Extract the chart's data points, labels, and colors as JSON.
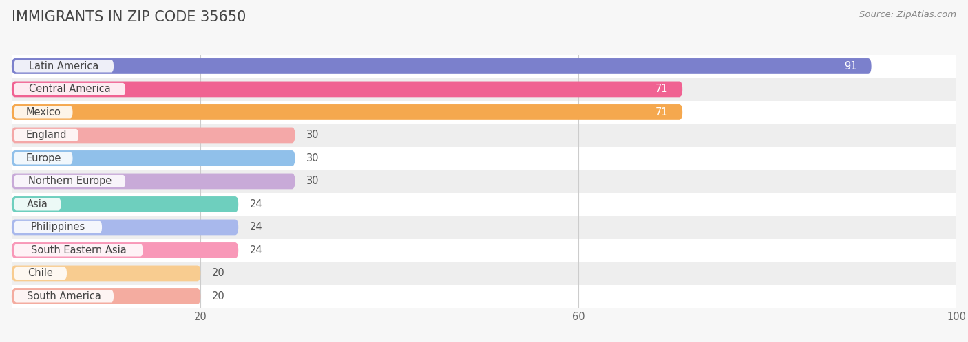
{
  "title": "IMMIGRANTS IN ZIP CODE 35650",
  "source": "Source: ZipAtlas.com",
  "categories": [
    "Latin America",
    "Central America",
    "Mexico",
    "England",
    "Europe",
    "Northern Europe",
    "Asia",
    "Philippines",
    "South Eastern Asia",
    "Chile",
    "South America"
  ],
  "values": [
    91,
    71,
    71,
    30,
    30,
    30,
    24,
    24,
    24,
    20,
    20
  ],
  "bar_colors": [
    "#7b80cc",
    "#f06292",
    "#f5a84e",
    "#f4a8a8",
    "#90c0ea",
    "#c8aad8",
    "#6ecfbe",
    "#a8b8ec",
    "#f898b8",
    "#f8cc90",
    "#f4aca0"
  ],
  "bar_height": 0.68,
  "xlim": [
    0,
    100
  ],
  "xticks": [
    20,
    60,
    100
  ],
  "background_color": "#f7f7f7",
  "row_bg_even": "#ffffff",
  "row_bg_odd": "#eeeeee",
  "title_fontsize": 15,
  "label_fontsize": 10.5,
  "value_fontsize": 10.5,
  "source_fontsize": 9.5
}
